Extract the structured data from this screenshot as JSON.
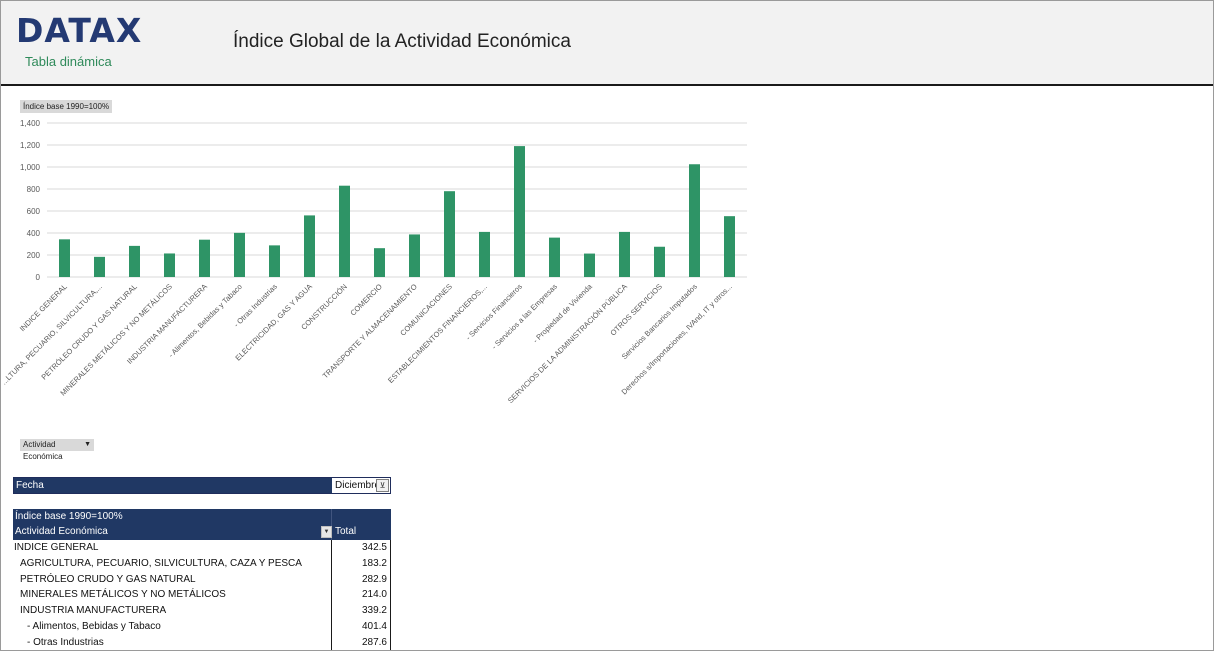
{
  "header": {
    "logo": "DATAX",
    "subtitle": "Tabla dinámica",
    "title": "Índice Global de la Actividad Económica"
  },
  "chart_chip": "Índice base 1990=100%",
  "field_button": {
    "label": "Actividad Económica",
    "arrow": "▼"
  },
  "filter": {
    "label": "Fecha",
    "value": "Diciembre",
    "icon": "filter-icon"
  },
  "pivot": {
    "header_top": "Índice base 1990=100%",
    "row_label_header": "Actividad Económica",
    "value_header": "Total",
    "rows": [
      {
        "label": "INDICE GENERAL",
        "value": "342.5",
        "level": 0
      },
      {
        "label": "AGRICULTURA, PECUARIO, SILVICULTURA, CAZA Y PESCA",
        "value": "183.2",
        "level": 1
      },
      {
        "label": "PETRÓLEO CRUDO Y GAS NATURAL",
        "value": "282.9",
        "level": 1
      },
      {
        "label": "MINERALES METÁLICOS Y NO METÁLICOS",
        "value": "214.0",
        "level": 1
      },
      {
        "label": "INDUSTRIA MANUFACTURERA",
        "value": "339.2",
        "level": 1
      },
      {
        "label": "- Alimentos, Bebidas y Tabaco",
        "value": "401.4",
        "level": 2
      },
      {
        "label": "- Otras Industrias",
        "value": "287.6",
        "level": 2
      }
    ]
  },
  "colors": {
    "bar": "#2e9466",
    "header_blue": "#203864",
    "grid": "#d9d9d9"
  },
  "chart_data": {
    "type": "bar",
    "title": "",
    "xlabel": "",
    "ylabel": "",
    "ylim": [
      0,
      1400
    ],
    "yticks": [
      "0",
      "200",
      "400",
      "600",
      "800",
      "1,000",
      "1,200",
      "1,400"
    ],
    "grid": true,
    "categories": [
      "INDICE GENERAL",
      "...LTURA, PECUARIO, SILVICULTURA,...",
      "PETRÓLEO CRUDO Y GAS NATURAL",
      "MINERALES METÁLICOS Y NO METÁLICOS",
      "INDUSTRIA MANUFACTURERA",
      "- Alimentos, Bebidas y Tabaco",
      "- Otras Industrias",
      "ELECTRICIDAD, GAS Y AGUA",
      "CONSTRUCCIÓN",
      "COMERCIO",
      "TRANSPORTE Y ALMACENAMIENTO",
      "COMUNICACIONES",
      "ESTABLECIMIENTOS FINANCIEROS,...",
      "- Servicios Financieros",
      "- Servicios a las Empresas",
      "- Propiedad de Vivienda",
      "SERVICIOS DE LA ADMINISTRACIÓN PÚBLICA",
      "OTROS SERVICIOS",
      "Servicios Bancarios Imputados",
      "Derechos s/Importaciones, IVAnd, IT y otros..."
    ],
    "values": [
      342.5,
      183.2,
      282.9,
      214.0,
      339.2,
      401.4,
      287.6,
      560,
      830,
      262,
      387,
      780,
      410,
      1190,
      358,
      213,
      410,
      275,
      1025,
      553
    ]
  }
}
